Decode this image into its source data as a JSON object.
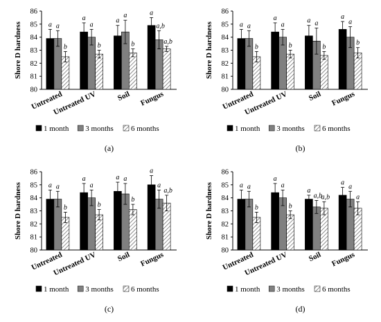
{
  "figure": {
    "series_colors": [
      "#000000",
      "#808080",
      "hatch"
    ]
  },
  "chart_data": [
    {
      "type": "bar",
      "panel_label": "(a)",
      "ylabel": "Shore D hardness",
      "ylim": [
        80,
        86
      ],
      "yticks": [
        80,
        81,
        82,
        83,
        84,
        85,
        86
      ],
      "categories": [
        "Untreated",
        "Untreated UV",
        "Soil",
        "Fungus"
      ],
      "series": [
        {
          "name": "1 month",
          "values": [
            83.9,
            84.4,
            84.1,
            84.9
          ],
          "errors": [
            0.7,
            0.7,
            0.8,
            0.6
          ],
          "labels": [
            "a",
            "a",
            "a",
            "a"
          ]
        },
        {
          "name": "3 months",
          "values": [
            83.9,
            84.0,
            84.4,
            83.8
          ],
          "errors": [
            0.6,
            0.6,
            0.9,
            0.7
          ],
          "labels": [
            "a",
            "a",
            "a",
            "a,b"
          ]
        },
        {
          "name": "6 months",
          "values": [
            82.5,
            82.7,
            82.8,
            83.1
          ],
          "errors": [
            0.4,
            0.3,
            0.3,
            0.2
          ],
          "labels": [
            "b",
            "b",
            "b",
            "a,b"
          ]
        }
      ],
      "legend": "bottom"
    },
    {
      "type": "bar",
      "panel_label": "(b)",
      "ylabel": "Shore D hardness",
      "ylim": [
        80,
        86
      ],
      "yticks": [
        80,
        81,
        82,
        83,
        84,
        85,
        86
      ],
      "categories": [
        "Untreated",
        "Untreated UV",
        "Soil",
        "Fungus"
      ],
      "series": [
        {
          "name": "1 month",
          "values": [
            83.9,
            84.4,
            84.1,
            84.6
          ],
          "errors": [
            0.7,
            0.7,
            0.8,
            0.6
          ],
          "labels": [
            "a",
            "a",
            "a",
            "a"
          ]
        },
        {
          "name": "3 months",
          "values": [
            83.9,
            84.0,
            83.7,
            84.0
          ],
          "errors": [
            0.6,
            0.6,
            1.0,
            0.8
          ],
          "labels": [
            "a",
            "a",
            "a",
            "a"
          ]
        },
        {
          "name": "6 months",
          "values": [
            82.5,
            82.7,
            82.6,
            82.8
          ],
          "errors": [
            0.4,
            0.3,
            0.3,
            0.4
          ],
          "labels": [
            "b",
            "b",
            "b",
            "b"
          ]
        }
      ],
      "legend": "bottom"
    },
    {
      "type": "bar",
      "panel_label": "(c)",
      "ylabel": "Shore D hardness",
      "ylim": [
        80,
        86
      ],
      "yticks": [
        80,
        81,
        82,
        83,
        84,
        85,
        86
      ],
      "categories": [
        "Untreated",
        "Untreated UV",
        "Soil",
        "Fungus"
      ],
      "series": [
        {
          "name": "1 month",
          "values": [
            83.9,
            84.4,
            84.5,
            85.0
          ],
          "errors": [
            0.7,
            0.7,
            0.7,
            0.7
          ],
          "labels": [
            "a",
            "a",
            "a",
            "a"
          ]
        },
        {
          "name": "3 months",
          "values": [
            83.9,
            84.0,
            84.3,
            83.9
          ],
          "errors": [
            0.6,
            0.6,
            0.8,
            0.7
          ],
          "labels": [
            "a",
            "a",
            "a",
            "a"
          ]
        },
        {
          "name": "6 months",
          "values": [
            82.5,
            82.7,
            83.1,
            83.6
          ],
          "errors": [
            0.4,
            0.4,
            0.4,
            0.6
          ],
          "labels": [
            "b",
            "b",
            "b",
            "a,b"
          ]
        }
      ],
      "legend": "bottom"
    },
    {
      "type": "bar",
      "panel_label": "(d)",
      "ylabel": "Shore D hardness",
      "ylim": [
        80,
        86
      ],
      "yticks": [
        80,
        81,
        82,
        83,
        84,
        85,
        86
      ],
      "categories": [
        "Untreated",
        "Untreated UV",
        "Soil",
        "Fungus"
      ],
      "series": [
        {
          "name": "1 month",
          "values": [
            83.9,
            84.4,
            83.9,
            84.2
          ],
          "errors": [
            0.7,
            0.7,
            0.3,
            0.6
          ],
          "labels": [
            "a",
            "a",
            "a",
            "a"
          ]
        },
        {
          "name": "3 months",
          "values": [
            83.9,
            84.0,
            83.3,
            83.9
          ],
          "errors": [
            0.6,
            0.6,
            0.5,
            0.6
          ],
          "labels": [
            "a",
            "a",
            "a,b",
            "a"
          ]
        },
        {
          "name": "6 months",
          "values": [
            82.5,
            82.7,
            83.2,
            83.2
          ],
          "errors": [
            0.4,
            0.3,
            0.5,
            0.5
          ],
          "labels": [
            "b",
            "b",
            "a,b",
            "a"
          ]
        }
      ],
      "legend": "bottom"
    }
  ]
}
